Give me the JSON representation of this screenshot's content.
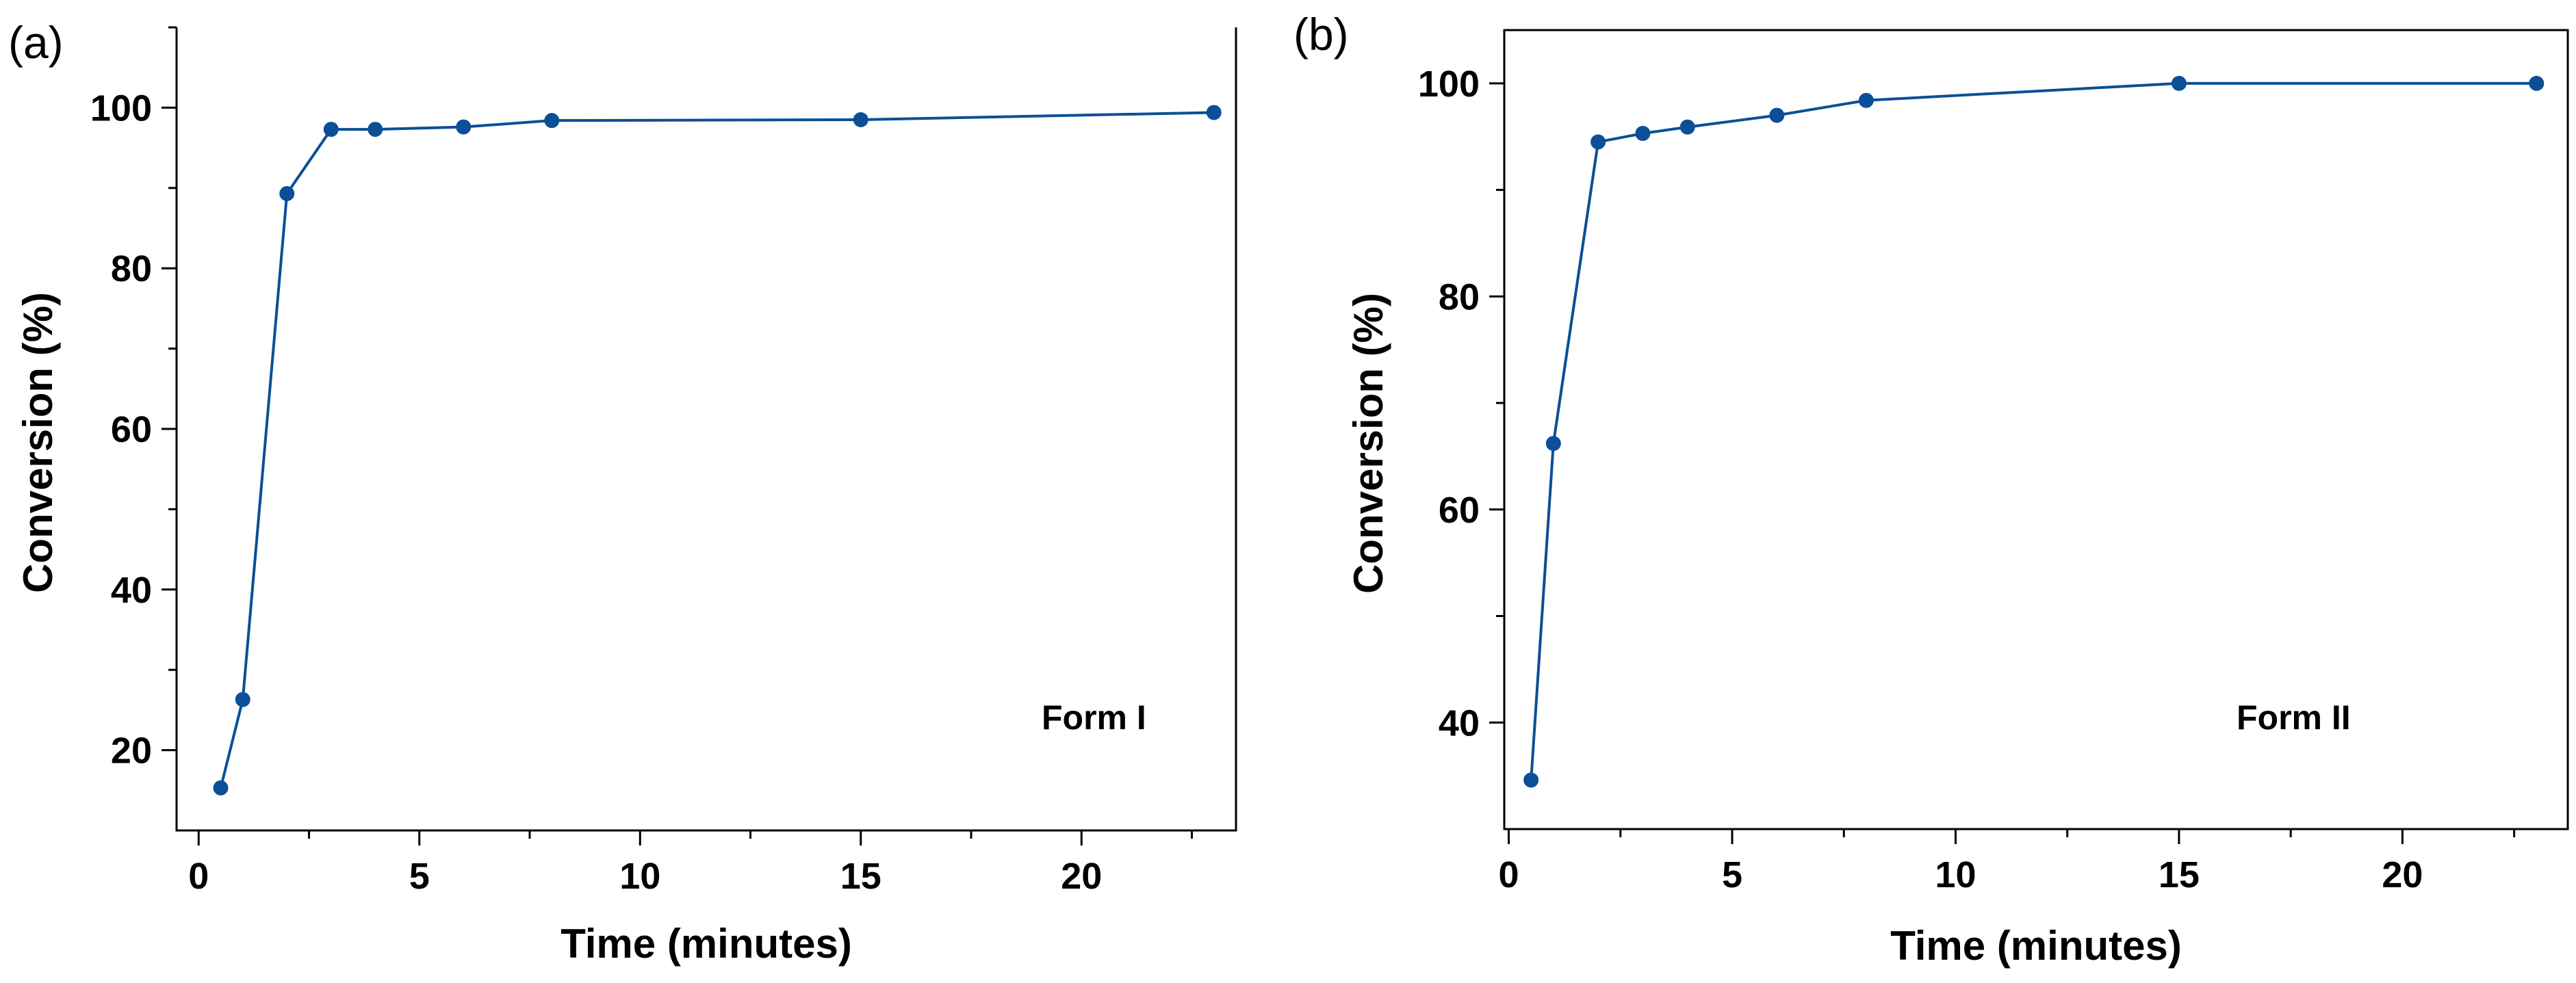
{
  "colors": {
    "series": "#0b4f96",
    "axis": "#000000"
  },
  "chart_data": [
    {
      "type": "line",
      "panel_label": "(a)",
      "annotation": "Form I",
      "xlabel": "Time (minutes)",
      "ylabel": "Conversion (%)",
      "xlim": [
        -0.5,
        23.5
      ],
      "ylim": [
        10,
        110
      ],
      "xticks": [
        0,
        5,
        10,
        15,
        20
      ],
      "xtick_labels": [
        "0",
        "5",
        "10",
        "15",
        "20"
      ],
      "xminor": [
        2.5,
        7.5,
        12.5,
        17.5,
        22.5
      ],
      "yticks": [
        20,
        40,
        60,
        80,
        100
      ],
      "ytick_labels": [
        "20",
        "40",
        "60",
        "80",
        "100"
      ],
      "yminor": [
        30,
        50,
        70,
        90,
        110
      ],
      "grid": false,
      "series": [
        {
          "name": "Form I",
          "x": [
            0.5,
            1,
            2,
            3,
            4,
            6,
            8,
            15,
            23
          ],
          "y": [
            15.3,
            26.3,
            89.3,
            97.3,
            97.3,
            97.6,
            98.4,
            98.5,
            99.4
          ]
        }
      ]
    },
    {
      "type": "line",
      "panel_label": "(b)",
      "annotation": "Form II",
      "xlabel": "Time (minutes)",
      "ylabel": "Conversion (%)",
      "xlim": [
        -0.1,
        23.7
      ],
      "ylim": [
        30,
        105
      ],
      "xticks": [
        0,
        5,
        10,
        15,
        20
      ],
      "xtick_labels": [
        "0",
        "5",
        "10",
        "15",
        "20"
      ],
      "xminor": [
        2.5,
        7.5,
        12.5,
        17.5,
        22.5
      ],
      "yticks": [
        40,
        60,
        80,
        100
      ],
      "ytick_labels": [
        "40",
        "60",
        "80",
        "100"
      ],
      "yminor": [
        50,
        70,
        90
      ],
      "grid": false,
      "series": [
        {
          "name": "Form II",
          "x": [
            0.5,
            1,
            2,
            3,
            4,
            6,
            8,
            15,
            23
          ],
          "y": [
            34.6,
            66.2,
            94.5,
            95.3,
            95.9,
            97.0,
            98.4,
            100.0,
            100.0
          ]
        }
      ]
    }
  ]
}
